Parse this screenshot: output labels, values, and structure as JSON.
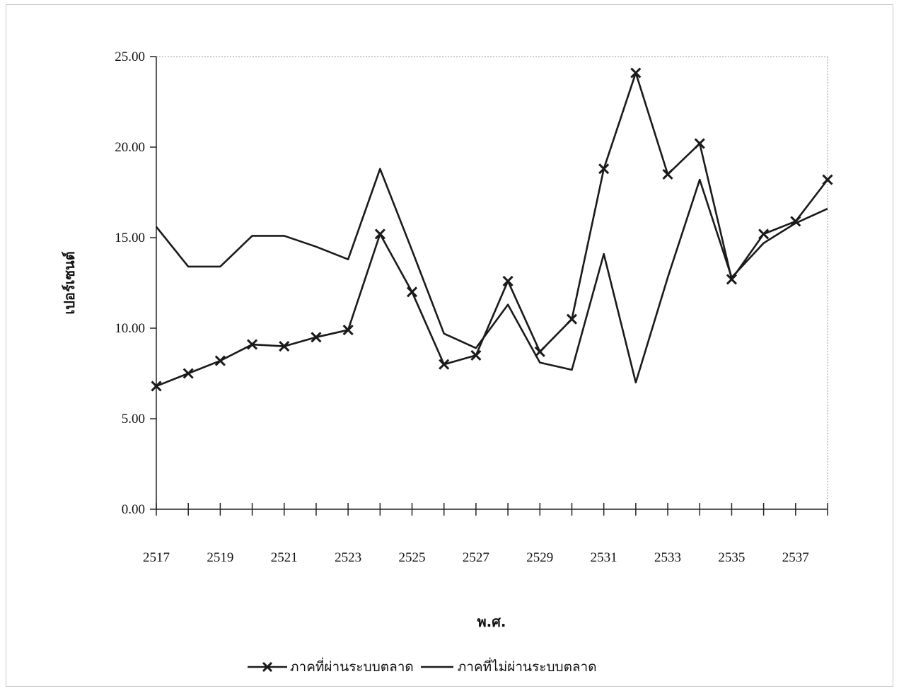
{
  "chart_data": {
    "type": "line",
    "title": "",
    "xlabel": "พ.ศ.",
    "ylabel": "เปอร์เซนต์",
    "x": [
      2517,
      2518,
      2519,
      2520,
      2521,
      2522,
      2523,
      2524,
      2525,
      2526,
      2527,
      2528,
      2529,
      2530,
      2531,
      2532,
      2533,
      2534,
      2535,
      2536,
      2537,
      2538
    ],
    "x_tick_labels": [
      "2517",
      "2519",
      "2521",
      "2523",
      "2525",
      "2527",
      "2529",
      "2531",
      "2533",
      "2535",
      "2537"
    ],
    "y_tick_labels": [
      "0.00",
      "5.00",
      "10.00",
      "15.00",
      "20.00",
      "25.00"
    ],
    "ylim": [
      0,
      25
    ],
    "grid": false,
    "legend_position": "bottom",
    "series": [
      {
        "name": "ภาคที่ผ่านระบบตลาด",
        "marker": "x",
        "color": "#1a1a1a",
        "values": [
          6.8,
          7.5,
          8.2,
          9.1,
          9.0,
          9.5,
          9.9,
          15.2,
          12.0,
          8.0,
          8.5,
          12.6,
          8.7,
          10.5,
          18.8,
          24.1,
          18.5,
          20.2,
          12.7,
          15.2,
          15.9,
          18.2
        ]
      },
      {
        "name": "ภาคที่ไม่ผ่านระบบตลาด",
        "marker": "none",
        "color": "#1a1a1a",
        "values": [
          15.6,
          13.4,
          13.4,
          15.1,
          15.1,
          14.5,
          13.8,
          18.8,
          14.3,
          9.7,
          8.9,
          11.3,
          8.1,
          7.7,
          14.1,
          7.0,
          12.8,
          18.2,
          12.8,
          14.7,
          15.8,
          16.6
        ]
      }
    ]
  }
}
